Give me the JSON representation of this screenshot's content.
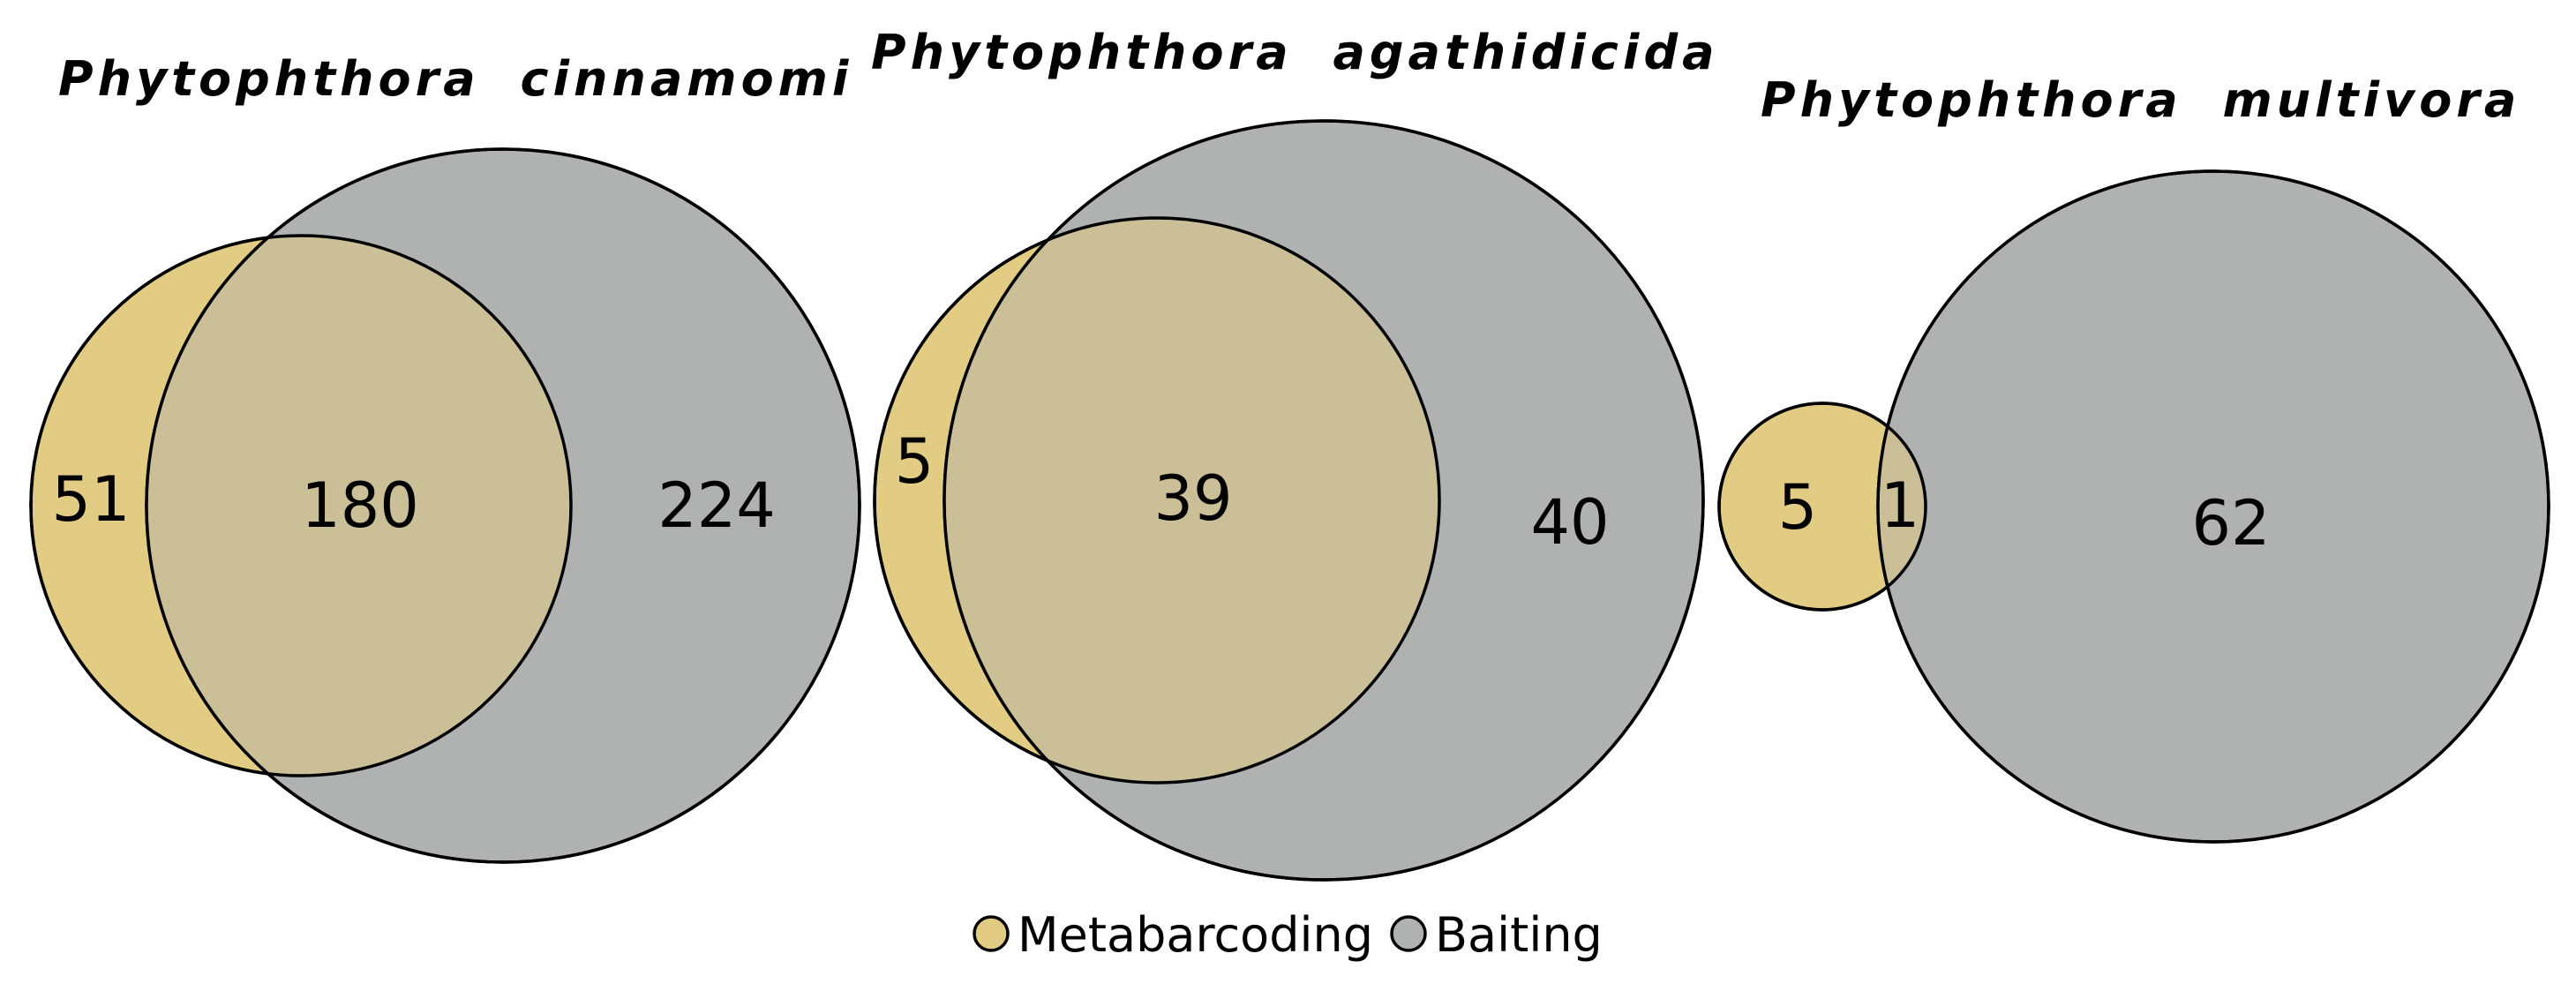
{
  "colors": {
    "metabarcoding": "#e2cb82",
    "baiting": "#b0b1b1",
    "overlap": "#cbbf98",
    "outline": "#000000"
  },
  "legend": {
    "metabarcoding_label": "Metabarcoding",
    "baiting_label": "Baiting"
  },
  "venns": [
    {
      "title": "Phytophthora cinnamomi",
      "metabarcoding_only": "51",
      "both": "180",
      "baiting_only": "224"
    },
    {
      "title": "Phytophthora agathidicida",
      "metabarcoding_only": "5",
      "both": "39",
      "baiting_only": "40"
    },
    {
      "title": "Phytophthora multivora",
      "metabarcoding_only": "5",
      "both": "1",
      "baiting_only": "62"
    }
  ]
}
